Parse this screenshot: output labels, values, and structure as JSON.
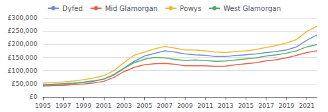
{
  "chart_data": {
    "type": "line",
    "x": [
      1995,
      1996,
      1997,
      1998,
      1999,
      2000,
      2001,
      2002,
      2003,
      2004,
      2005,
      2006,
      2007,
      2008,
      2009,
      2010,
      2011,
      2012,
      2013,
      2014,
      2015,
      2016,
      2017,
      2018,
      2019,
      2020,
      2021,
      2022
    ],
    "series": [
      {
        "name": "Dyfed",
        "color": "#7090c8",
        "values": [
          46000,
          48000,
          50000,
          52000,
          56000,
          61000,
          68000,
          85000,
          110000,
          135000,
          155000,
          165000,
          175000,
          170000,
          163000,
          160000,
          158000,
          153000,
          153000,
          157000,
          160000,
          163000,
          168000,
          172000,
          178000,
          190000,
          215000,
          235000
        ]
      },
      {
        "name": "Mid Glamorgan",
        "color": "#e8614e",
        "values": [
          41000,
          43000,
          44000,
          46000,
          49000,
          53000,
          59000,
          74000,
          96000,
          112000,
          122000,
          126000,
          127000,
          124000,
          118000,
          118000,
          118000,
          116000,
          117000,
          122000,
          126000,
          130000,
          137000,
          141000,
          148000,
          158000,
          168000,
          175000
        ]
      },
      {
        "name": "Powys",
        "color": "#f0b830",
        "values": [
          52000,
          54000,
          57000,
          60000,
          65000,
          72000,
          80000,
          100000,
          130000,
          158000,
          170000,
          182000,
          192000,
          185000,
          178000,
          178000,
          175000,
          170000,
          168000,
          172000,
          175000,
          180000,
          188000,
          195000,
          205000,
          218000,
          248000,
          268000
        ]
      },
      {
        "name": "West Glamorgan",
        "color": "#5aaa6e",
        "values": [
          44000,
          46000,
          48000,
          51000,
          55000,
          59000,
          67000,
          83000,
          108000,
          130000,
          143000,
          150000,
          148000,
          142000,
          138000,
          140000,
          138000,
          135000,
          136000,
          140000,
          144000,
          148000,
          155000,
          160000,
          166000,
          175000,
          190000,
          198000
        ]
      }
    ],
    "xlim": [
      1995,
      2022
    ],
    "xticks": [
      1995,
      1997,
      1999,
      2001,
      2003,
      2005,
      2007,
      2009,
      2011,
      2013,
      2015,
      2017,
      2019,
      2021
    ],
    "ylim": [
      0,
      300000
    ],
    "yticks": [
      {
        "value": 0,
        "label": "£0"
      },
      {
        "value": 50000,
        "label": "£50,000"
      },
      {
        "value": 100000,
        "label": "£100,000"
      },
      {
        "value": 150000,
        "label": "£150,000"
      },
      {
        "value": 200000,
        "label": "£200,000"
      },
      {
        "value": 250000,
        "label": "£250,000"
      },
      {
        "value": 300000,
        "label": "£300,000"
      }
    ],
    "grid": true,
    "legend": "top"
  }
}
